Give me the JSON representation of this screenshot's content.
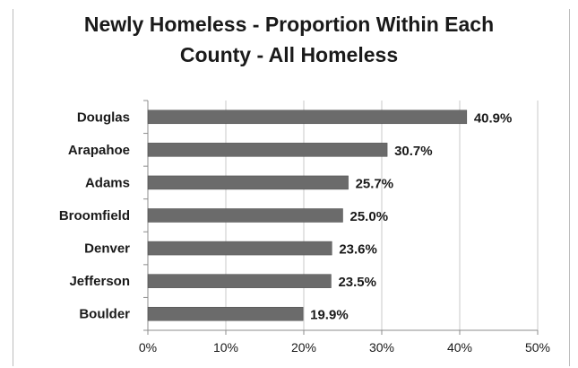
{
  "chart_data": {
    "type": "bar",
    "orientation": "horizontal",
    "title_lines": [
      "Newly Homeless - Proportion Within Each",
      "County - All Homeless"
    ],
    "categories": [
      "Douglas",
      "Arapahoe",
      "Adams",
      "Broomfield",
      "Denver",
      "Jefferson",
      "Boulder"
    ],
    "values": [
      40.9,
      30.7,
      25.7,
      25.0,
      23.6,
      23.5,
      19.9
    ],
    "value_labels": [
      "40.9%",
      "30.7%",
      "25.7%",
      "25.0%",
      "23.6%",
      "23.5%",
      "19.9%"
    ],
    "xlim": [
      0,
      50
    ],
    "x_ticks": [
      0,
      10,
      20,
      30,
      40,
      50
    ],
    "x_tick_labels": [
      "0%",
      "10%",
      "20%",
      "30%",
      "40%",
      "50%"
    ],
    "xlabel": "",
    "ylabel": "",
    "grid": "vertical",
    "bar_color": "#6b6b6b",
    "grid_color": "#c8c8c8"
  }
}
